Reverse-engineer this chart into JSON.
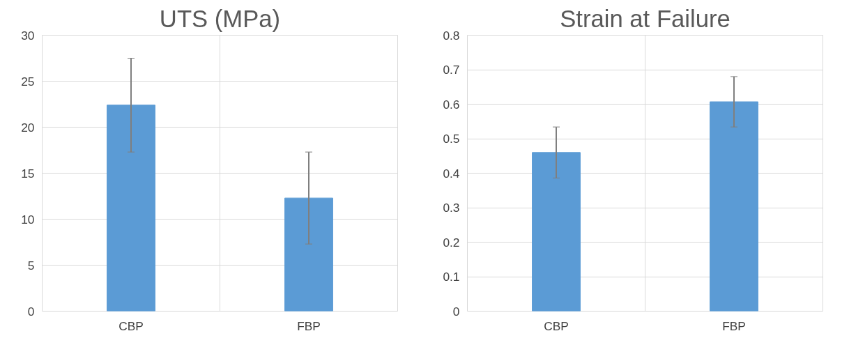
{
  "chart_data": [
    {
      "type": "bar",
      "title": "UTS (MPa)",
      "categories": [
        "CBP",
        "FBP"
      ],
      "values": [
        22.4,
        12.3
      ],
      "errors": [
        5.1,
        5.0
      ],
      "color": "#5b9bd5",
      "ylim": [
        0,
        30
      ],
      "yticks": [
        0,
        5,
        10,
        15,
        20,
        25,
        30
      ],
      "grid": true
    },
    {
      "type": "bar",
      "title": "Strain at Failure",
      "categories": [
        "CBP",
        "FBP"
      ],
      "values": [
        0.46,
        0.607
      ],
      "errors": [
        0.074,
        0.073
      ],
      "color": "#5b9bd5",
      "ylim": [
        0,
        0.8
      ],
      "yticks": [
        0,
        0.1,
        0.2,
        0.3,
        0.4,
        0.5,
        0.6,
        0.7,
        0.8
      ],
      "grid": true
    }
  ]
}
